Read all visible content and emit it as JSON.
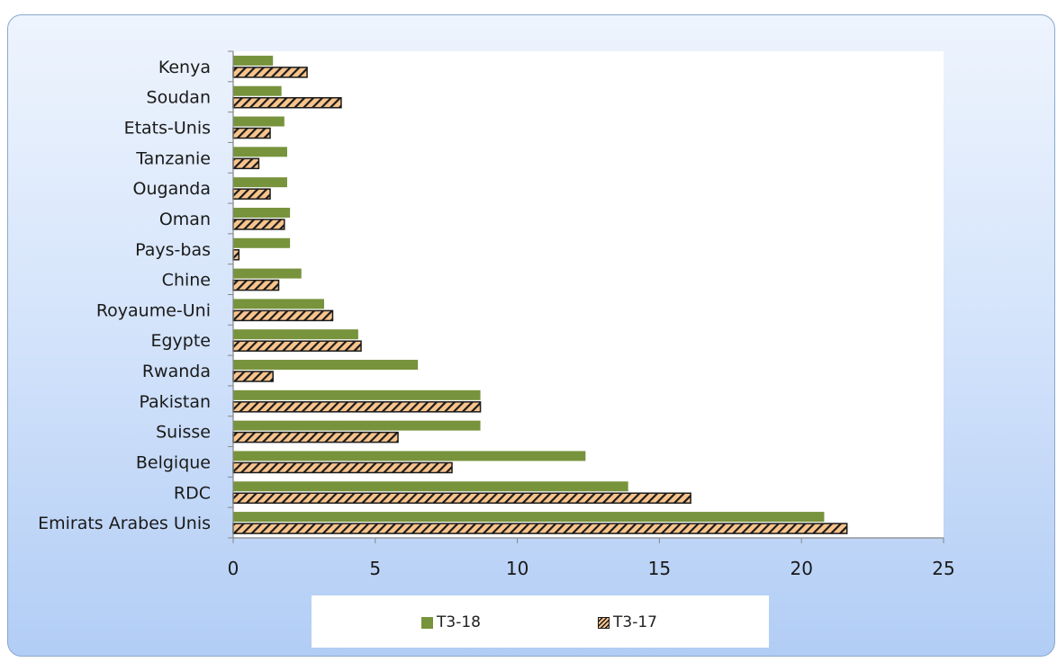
{
  "chart_data": {
    "type": "bar",
    "orientation": "horizontal",
    "title": "",
    "xlabel": "",
    "ylabel": "",
    "xlim": [
      0,
      25
    ],
    "x_ticks": [
      "0",
      "5",
      "10",
      "15",
      "20",
      "25"
    ],
    "categories": [
      "Kenya",
      "Soudan",
      "Etats-Unis",
      "Tanzanie",
      "Ouganda",
      "Oman",
      "Pays-bas",
      "Chine",
      "Royaume-Uni",
      "Egypte",
      "Rwanda",
      "Pakistan",
      "Suisse",
      "Belgique",
      "RDC",
      "Emirats Arabes Unis"
    ],
    "series": [
      {
        "name": "T3-18",
        "color": "#77933c",
        "pattern": "solid",
        "values": [
          1.4,
          1.7,
          1.8,
          1.9,
          1.9,
          2.0,
          2.0,
          2.4,
          3.2,
          4.4,
          6.5,
          8.7,
          8.7,
          12.4,
          13.9,
          20.8
        ]
      },
      {
        "name": "T3-17",
        "color": "#f8c48c",
        "pattern": "hatched",
        "values": [
          2.6,
          3.8,
          1.3,
          0.9,
          1.3,
          1.8,
          0.2,
          1.6,
          3.5,
          4.5,
          1.4,
          8.7,
          5.8,
          7.7,
          16.1,
          21.6
        ]
      }
    ],
    "grid": false,
    "legend_position": "bottom"
  }
}
